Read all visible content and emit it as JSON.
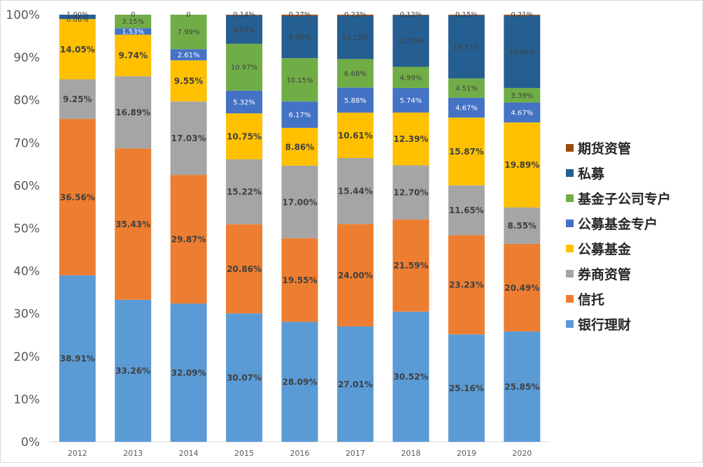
{
  "chart_data": {
    "type": "stacked-bar-100",
    "categories": [
      "2012",
      "2013",
      "2014",
      "2015",
      "2016",
      "2017",
      "2018",
      "2019",
      "2020"
    ],
    "ylim": [
      0,
      100
    ],
    "ytick_labels": [
      "0%",
      "10%",
      "20%",
      "30%",
      "40%",
      "50%",
      "60%",
      "70%",
      "80%",
      "90%",
      "100%"
    ],
    "grid": false,
    "legend_position": "right",
    "series": [
      {
        "name": "银行理财",
        "color": "#5b9bd5",
        "values": [
          38.91,
          33.26,
          32.09,
          30.07,
          28.09,
          27.01,
          30.52,
          25.16,
          25.85
        ],
        "labels": [
          "38.91%",
          "33.26%",
          "32.09%",
          "30.07%",
          "28.09%",
          "27.01%",
          "30.52%",
          "25.16%",
          "25.85%"
        ]
      },
      {
        "name": "信托",
        "color": "#ed7d31",
        "values": [
          36.56,
          35.43,
          29.87,
          20.86,
          19.55,
          24.0,
          21.59,
          23.23,
          20.49
        ],
        "labels": [
          "36.56%",
          "35.43%",
          "29.87%",
          "20.86%",
          "19.55%",
          "24.00%",
          "21.59%",
          "23.23%",
          "20.49%"
        ]
      },
      {
        "name": "券商资管",
        "color": "#a5a5a5",
        "values": [
          9.25,
          16.89,
          17.03,
          15.22,
          17.0,
          15.44,
          12.7,
          11.65,
          8.55
        ],
        "labels": [
          "9.25%",
          "16.89%",
          "17.03%",
          "15.22%",
          "17.00%",
          "15.44%",
          "12.70%",
          "11.65%",
          "8.55%"
        ]
      },
      {
        "name": "公募基金",
        "color": "#ffc000",
        "values": [
          14.05,
          9.74,
          9.55,
          10.75,
          8.86,
          10.61,
          12.39,
          15.87,
          19.89
        ],
        "labels": [
          "14.05%",
          "9.74%",
          "9.55%",
          "10.75%",
          "8.86%",
          "10.61%",
          "12.39%",
          "15.87%",
          "19.89%"
        ]
      },
      {
        "name": "公募基金专户",
        "color": "#4472c4",
        "values": [
          0,
          1.53,
          2.61,
          5.32,
          6.17,
          5.88,
          5.74,
          4.67,
          4.67
        ],
        "labels": [
          "",
          "1.53%",
          "2.61%",
          "5.32%",
          "6.17%",
          "5.88%",
          "5.74%",
          "4.67%",
          "4.67%"
        ]
      },
      {
        "name": "基金子公司专户",
        "color": "#70ad47",
        "values": [
          0.06,
          3.15,
          7.99,
          10.97,
          10.15,
          6.68,
          4.99,
          4.51,
          3.39
        ],
        "labels": [
          "0.06%",
          "3.15%",
          "7.99%",
          "10.97%",
          "10.15%",
          "6.68%",
          "4.99%",
          "4.51%",
          "3.39%"
        ]
      },
      {
        "name": "私募",
        "color": "#255e91",
        "values": [
          1.0,
          0,
          0,
          6.67,
          9.9,
          10.15,
          12.09,
          14.77,
          16.96
        ],
        "labels": [
          "1.00%",
          "0",
          "0",
          "6.67%",
          "9.90%",
          "10.15%",
          "12.09%",
          "14.77%",
          "16.96%"
        ]
      },
      {
        "name": "期货资管",
        "color": "#9e480e",
        "values": [
          0,
          0,
          0,
          0.14,
          0.27,
          0.23,
          0.12,
          0.15,
          0.21
        ],
        "labels": [
          "",
          "",
          "",
          "0.14%",
          "0.27%",
          "0.23%",
          "0.12%",
          "0.15%",
          "0.21%"
        ]
      }
    ]
  }
}
